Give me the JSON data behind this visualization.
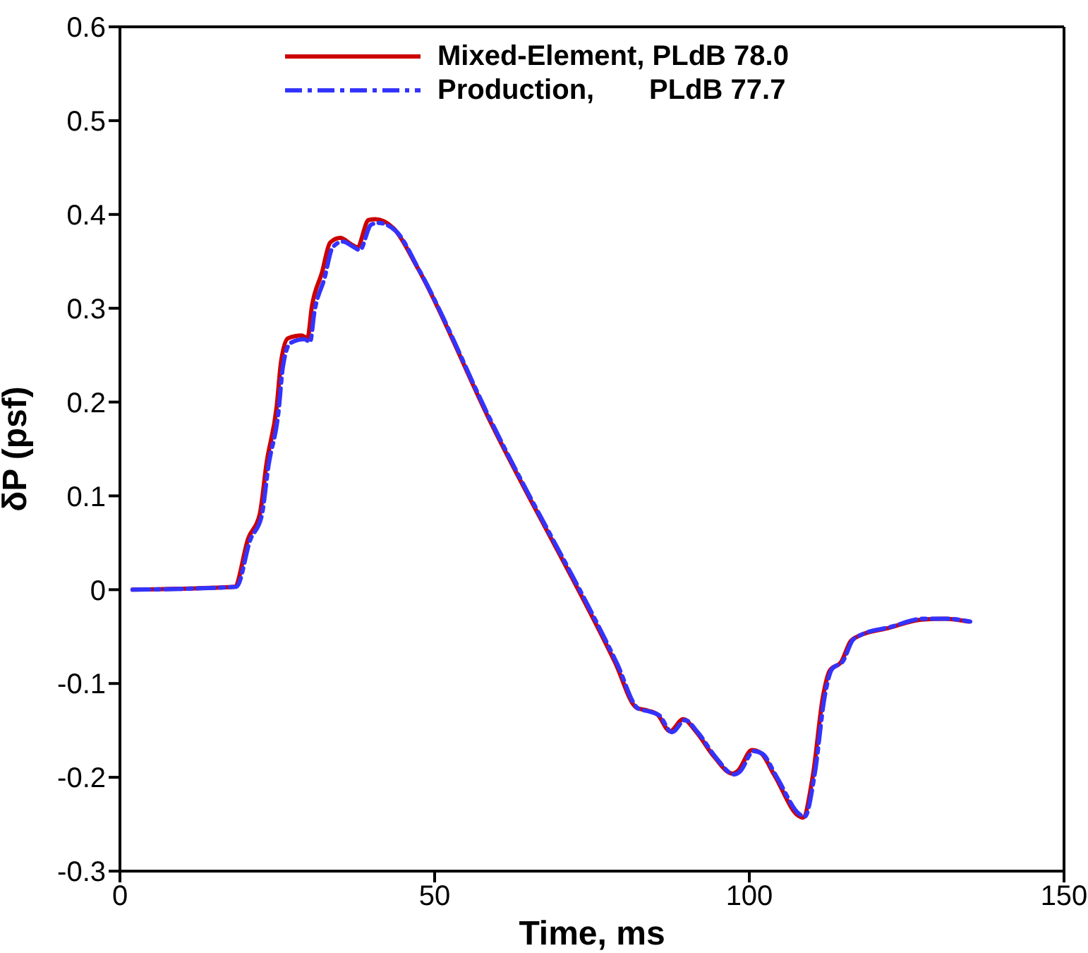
{
  "chart_data": {
    "type": "line",
    "xlabel": "Time, ms",
    "ylabel": "δP (psf)",
    "xlim": [
      0,
      150
    ],
    "xticks": [
      0,
      50,
      100,
      150
    ],
    "ylim": [
      -0.3,
      0.6
    ],
    "yticks": [
      -0.3,
      -0.2,
      -0.1,
      0,
      0.1,
      0.2,
      0.3,
      0.4,
      0.5,
      0.6
    ],
    "legend": "top",
    "marker": "none",
    "series": [
      {
        "name": "Mixed-Element, PLdB 78.0",
        "color": "#cc0000",
        "line_style": "solid",
        "x": [
          2,
          18.2,
          20.4,
          22.2,
          23.3,
          24.9,
          25.6,
          26.7,
          28.9,
          29.8,
          30.5,
          32.1,
          33.4,
          35,
          36.8,
          37.7,
          39.5,
          40.6,
          43.5,
          47.3,
          58.5,
          78.7,
          82.1,
          83.9,
          85.4,
          87.4,
          89.5,
          91.5,
          94.4,
          97.3,
          98.2,
          100.4,
          101.8,
          104,
          107.8,
          108.5,
          110.1,
          111.7,
          112.8,
          114.6,
          116.1,
          117.5,
          122,
          127.4,
          131,
          134.8
        ],
        "values": [
          0,
          0.003,
          0.055,
          0.08,
          0.135,
          0.195,
          0.243,
          0.268,
          0.271,
          0.268,
          0.302,
          0.338,
          0.37,
          0.375,
          0.368,
          0.365,
          0.394,
          0.395,
          0.385,
          0.343,
          0.184,
          -0.078,
          -0.126,
          -0.129,
          -0.133,
          -0.151,
          -0.138,
          -0.151,
          -0.178,
          -0.196,
          -0.193,
          -0.171,
          -0.174,
          -0.198,
          -0.241,
          -0.243,
          -0.198,
          -0.114,
          -0.086,
          -0.077,
          -0.055,
          -0.049,
          -0.041,
          -0.032,
          -0.031,
          -0.034
        ]
      },
      {
        "name": "Production,       PLdB 77.7",
        "color": "#3333ff",
        "line_style": "dashdot",
        "x": [
          2,
          18.5,
          20.7,
          22.5,
          23.6,
          25.2,
          25.9,
          27.1,
          29.3,
          30.2,
          30.9,
          32.5,
          33.8,
          35.4,
          37.2,
          38.1,
          39.9,
          41,
          43.9,
          47.6,
          58.8,
          79,
          82.4,
          84.2,
          85.7,
          87.7,
          89.8,
          91.8,
          94.7,
          97.6,
          98.5,
          100.7,
          102.1,
          104.3,
          108.1,
          108.8,
          110.4,
          112,
          113.1,
          114.9,
          116.4,
          117.8,
          122.3,
          127.7,
          131.3,
          135.1
        ],
        "values": [
          0,
          0.003,
          0.053,
          0.078,
          0.132,
          0.19,
          0.238,
          0.263,
          0.267,
          0.264,
          0.296,
          0.332,
          0.365,
          0.371,
          0.365,
          0.362,
          0.389,
          0.391,
          0.382,
          0.34,
          0.182,
          -0.079,
          -0.127,
          -0.13,
          -0.134,
          -0.152,
          -0.139,
          -0.152,
          -0.179,
          -0.197,
          -0.194,
          -0.172,
          -0.175,
          -0.199,
          -0.24,
          -0.242,
          -0.196,
          -0.113,
          -0.085,
          -0.076,
          -0.054,
          -0.048,
          -0.04,
          -0.031,
          -0.031,
          -0.034
        ]
      }
    ]
  }
}
